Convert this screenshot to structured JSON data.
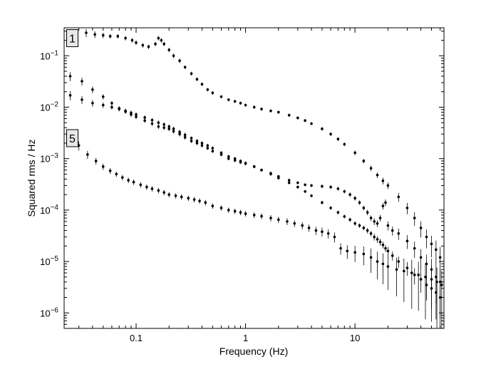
{
  "chart_data": {
    "type": "scatter",
    "xlabel": "Frequency (Hz)",
    "ylabel": "Squared rms / Hz",
    "xscale": "log",
    "yscale": "log",
    "xlim": [
      0.022,
      65
    ],
    "ylim": [
      5e-07,
      0.35
    ],
    "xticks": [
      {
        "value": 0.1,
        "label": "0.1"
      },
      {
        "value": 1,
        "label": "1"
      },
      {
        "value": 10,
        "label": "10"
      }
    ],
    "yticks": [
      {
        "value": 1e-06,
        "base": "10",
        "exp": "−6"
      },
      {
        "value": 1e-05,
        "base": "10",
        "exp": "−5"
      },
      {
        "value": 0.0001,
        "base": "10",
        "exp": "−4"
      },
      {
        "value": 0.001,
        "base": "10",
        "exp": "−3"
      },
      {
        "value": 0.01,
        "base": "10",
        "exp": "−2"
      },
      {
        "value": 0.1,
        "base": "10",
        "exp": "−1"
      }
    ],
    "annotations": [
      {
        "text": "1",
        "x": 0.0225,
        "y": 0.22
      },
      {
        "text": "5",
        "x": 0.0225,
        "y": 0.0025
      }
    ],
    "series": [
      {
        "marker_color": "#000000",
        "x": [
          0.028,
          0.035,
          0.042,
          0.05,
          0.058,
          0.068,
          0.08,
          0.092,
          0.1,
          0.115,
          0.13,
          0.15,
          0.16,
          0.17,
          0.18,
          0.2,
          0.22,
          0.25,
          0.28,
          0.32,
          0.36,
          0.4,
          0.45,
          0.5,
          0.6,
          0.7,
          0.8,
          0.9,
          1.0,
          1.2,
          1.4,
          1.7,
          2.0,
          2.5,
          3.0,
          3.5,
          4.0,
          5.0,
          6.0,
          7.0,
          8.0,
          10,
          12,
          14,
          16,
          18,
          20,
          25,
          30,
          35,
          40,
          45,
          50,
          55,
          60
        ],
        "y": [
          0.27,
          0.28,
          0.26,
          0.25,
          0.24,
          0.24,
          0.22,
          0.2,
          0.18,
          0.16,
          0.15,
          0.17,
          0.22,
          0.2,
          0.17,
          0.13,
          0.1,
          0.08,
          0.06,
          0.045,
          0.035,
          0.028,
          0.022,
          0.019,
          0.016,
          0.014,
          0.013,
          0.012,
          0.011,
          0.01,
          0.0092,
          0.0085,
          0.008,
          0.007,
          0.0062,
          0.0055,
          0.0048,
          0.0038,
          0.003,
          0.0024,
          0.0019,
          0.0013,
          0.0009,
          0.00065,
          0.00048,
          0.00037,
          0.0003,
          0.00018,
          0.00011,
          7e-05,
          4.5e-05,
          3e-05,
          2.2e-05,
          1.7e-05,
          1.2e-05
        ],
        "yerr_frac": [
          0.2,
          0.18,
          0.15,
          0.12,
          0.1,
          0.1,
          0.1,
          0.1,
          0.1,
          0.1,
          0.1,
          0.1,
          0.1,
          0.1,
          0.1,
          0.1,
          0.1,
          0.1,
          0.08,
          0.08,
          0.08,
          0.08,
          0.08,
          0.08,
          0.07,
          0.07,
          0.07,
          0.07,
          0.07,
          0.07,
          0.07,
          0.07,
          0.07,
          0.07,
          0.07,
          0.07,
          0.07,
          0.08,
          0.08,
          0.08,
          0.08,
          0.1,
          0.1,
          0.12,
          0.12,
          0.15,
          0.15,
          0.2,
          0.25,
          0.3,
          0.35,
          0.4,
          0.45,
          0.5,
          0.6
        ]
      },
      {
        "marker_color": "#000000",
        "x": [
          0.025,
          0.032,
          0.04,
          0.05,
          0.06,
          0.07,
          0.08,
          0.09,
          0.1,
          0.12,
          0.14,
          0.16,
          0.18,
          0.2,
          0.22,
          0.25,
          0.28,
          0.32,
          0.36,
          0.4,
          0.45,
          0.5,
          0.6,
          0.7,
          0.8,
          0.9,
          1.0,
          1.2,
          1.4,
          1.7,
          2.0,
          2.5,
          3.0,
          3.5,
          4.0,
          5.0,
          6.0,
          7.0,
          8.0,
          9.0,
          10,
          11,
          12,
          13,
          14,
          15,
          16,
          17,
          18,
          19,
          20,
          22,
          25,
          30,
          35,
          40,
          45,
          50,
          55,
          60
        ],
        "y": [
          0.04,
          0.032,
          0.022,
          0.016,
          0.012,
          0.0095,
          0.0082,
          0.0072,
          0.0065,
          0.0055,
          0.0048,
          0.0042,
          0.004,
          0.0038,
          0.0034,
          0.003,
          0.0026,
          0.0022,
          0.002,
          0.0018,
          0.0016,
          0.0014,
          0.0012,
          0.001,
          0.00092,
          0.00085,
          0.0008,
          0.0007,
          0.0006,
          0.00052,
          0.00045,
          0.00038,
          0.00034,
          0.00031,
          0.0003,
          0.00029,
          0.00028,
          0.00026,
          0.00023,
          0.0002,
          0.00017,
          0.00014,
          0.00011,
          9e-05,
          7e-05,
          6e-05,
          5.5e-05,
          7e-05,
          0.00012,
          0.00014,
          5e-05,
          4e-05,
          3.5e-05,
          2.5e-05,
          1.8e-05,
          1.2e-05,
          9e-06,
          7e-06,
          5e-06,
          4e-06
        ],
        "yerr_frac": [
          0.2,
          0.18,
          0.15,
          0.12,
          0.1,
          0.1,
          0.1,
          0.1,
          0.1,
          0.1,
          0.1,
          0.1,
          0.1,
          0.1,
          0.1,
          0.1,
          0.1,
          0.08,
          0.08,
          0.08,
          0.08,
          0.08,
          0.07,
          0.07,
          0.07,
          0.07,
          0.07,
          0.07,
          0.07,
          0.07,
          0.07,
          0.07,
          0.07,
          0.07,
          0.07,
          0.08,
          0.08,
          0.08,
          0.08,
          0.1,
          0.1,
          0.1,
          0.1,
          0.12,
          0.12,
          0.15,
          0.15,
          0.15,
          0.15,
          0.15,
          0.2,
          0.2,
          0.25,
          0.3,
          0.35,
          0.45,
          0.5,
          0.6,
          0.7,
          0.8
        ]
      },
      {
        "marker_color": "#000000",
        "x": [
          0.025,
          0.032,
          0.04,
          0.05,
          0.06,
          0.07,
          0.08,
          0.09,
          0.1,
          0.12,
          0.14,
          0.16,
          0.18,
          0.2,
          0.22,
          0.25,
          0.28,
          0.32,
          0.36,
          0.4,
          0.45,
          0.5,
          0.6,
          0.7,
          0.8,
          0.9,
          1.0,
          1.2,
          1.4,
          1.7,
          2.0,
          2.5,
          3.0,
          3.5,
          4.0,
          5.0,
          6.0,
          7.0,
          8.0,
          9.0,
          10,
          11,
          12,
          13,
          14,
          15,
          16,
          17,
          18,
          19,
          20,
          22,
          25,
          30,
          35,
          40,
          45,
          50,
          55,
          60
        ],
        "y": [
          0.017,
          0.014,
          0.012,
          0.011,
          0.01,
          0.0092,
          0.0085,
          0.0078,
          0.0072,
          0.0063,
          0.0056,
          0.005,
          0.0046,
          0.0042,
          0.0038,
          0.0033,
          0.0029,
          0.0025,
          0.0022,
          0.002,
          0.0018,
          0.0016,
          0.0013,
          0.0011,
          0.001,
          0.0009,
          0.00082,
          0.0007,
          0.0006,
          0.0005,
          0.00042,
          0.00034,
          0.00028,
          0.00023,
          0.00019,
          0.00014,
          0.00011,
          9e-05,
          7.5e-05,
          6.5e-05,
          5.5e-05,
          5e-05,
          4.5e-05,
          4e-05,
          3.5e-05,
          3e-05,
          2.7e-05,
          2.4e-05,
          2.1e-05,
          1.8e-05,
          1.6e-05,
          1.3e-05,
          1e-05,
          7.5e-06,
          5.5e-06,
          4.5e-06,
          3.5e-06,
          3e-06,
          2.5e-06,
          2e-06
        ],
        "yerr_frac": [
          0.2,
          0.18,
          0.15,
          0.12,
          0.1,
          0.1,
          0.1,
          0.1,
          0.1,
          0.1,
          0.1,
          0.1,
          0.1,
          0.1,
          0.1,
          0.1,
          0.1,
          0.08,
          0.08,
          0.08,
          0.08,
          0.08,
          0.07,
          0.07,
          0.07,
          0.07,
          0.07,
          0.07,
          0.07,
          0.07,
          0.07,
          0.07,
          0.07,
          0.07,
          0.07,
          0.08,
          0.08,
          0.08,
          0.08,
          0.1,
          0.1,
          0.1,
          0.1,
          0.12,
          0.12,
          0.15,
          0.15,
          0.15,
          0.15,
          0.15,
          0.2,
          0.2,
          0.25,
          0.3,
          0.35,
          0.45,
          0.5,
          0.6,
          0.7,
          0.8
        ]
      },
      {
        "marker_color": "#000000",
        "x": [
          0.03,
          0.036,
          0.043,
          0.05,
          0.058,
          0.066,
          0.075,
          0.085,
          0.095,
          0.11,
          0.125,
          0.14,
          0.16,
          0.18,
          0.2,
          0.23,
          0.26,
          0.3,
          0.34,
          0.38,
          0.43,
          0.5,
          0.6,
          0.7,
          0.8,
          0.9,
          1.0,
          1.2,
          1.4,
          1.7,
          2.0,
          2.4,
          2.8,
          3.3,
          3.8,
          4.4,
          5.0,
          5.7,
          6.5,
          7.4,
          8.5,
          10,
          12,
          14,
          16,
          18,
          20,
          24,
          28,
          33,
          38,
          44,
          50,
          56,
          62
        ],
        "y": [
          0.0018,
          0.0012,
          0.0009,
          0.0007,
          0.00058,
          0.0005,
          0.00043,
          0.00038,
          0.00035,
          0.00031,
          0.00028,
          0.00026,
          0.00024,
          0.00022,
          0.0002,
          0.00019,
          0.00018,
          0.00017,
          0.00016,
          0.00015,
          0.00014,
          0.00012,
          0.00011,
          0.0001,
          9.5e-05,
          9e-05,
          8.5e-05,
          8e-05,
          7.6e-05,
          7e-05,
          6.5e-05,
          6e-05,
          5.5e-05,
          5e-05,
          4.5e-05,
          4e-05,
          3.8e-05,
          3.5e-05,
          3e-05,
          1.8e-05,
          1.6e-05,
          1.5e-05,
          1.4e-05,
          1.2e-05,
          1e-05,
          9e-06,
          8e-06,
          7e-06,
          6.5e-06,
          6e-06,
          5.5e-06,
          5e-06,
          4.5e-06,
          4e-06,
          3.5e-06
        ],
        "yerr_frac": [
          0.2,
          0.18,
          0.15,
          0.14,
          0.13,
          0.12,
          0.12,
          0.12,
          0.12,
          0.12,
          0.12,
          0.12,
          0.12,
          0.12,
          0.12,
          0.12,
          0.12,
          0.12,
          0.12,
          0.12,
          0.12,
          0.12,
          0.12,
          0.12,
          0.12,
          0.12,
          0.12,
          0.13,
          0.13,
          0.14,
          0.14,
          0.15,
          0.15,
          0.16,
          0.16,
          0.18,
          0.2,
          0.2,
          0.22,
          0.25,
          0.3,
          0.35,
          0.4,
          0.5,
          0.55,
          0.6,
          0.65,
          0.7,
          0.75,
          0.8,
          0.8,
          0.85,
          0.85,
          0.9,
          0.9
        ]
      }
    ]
  }
}
